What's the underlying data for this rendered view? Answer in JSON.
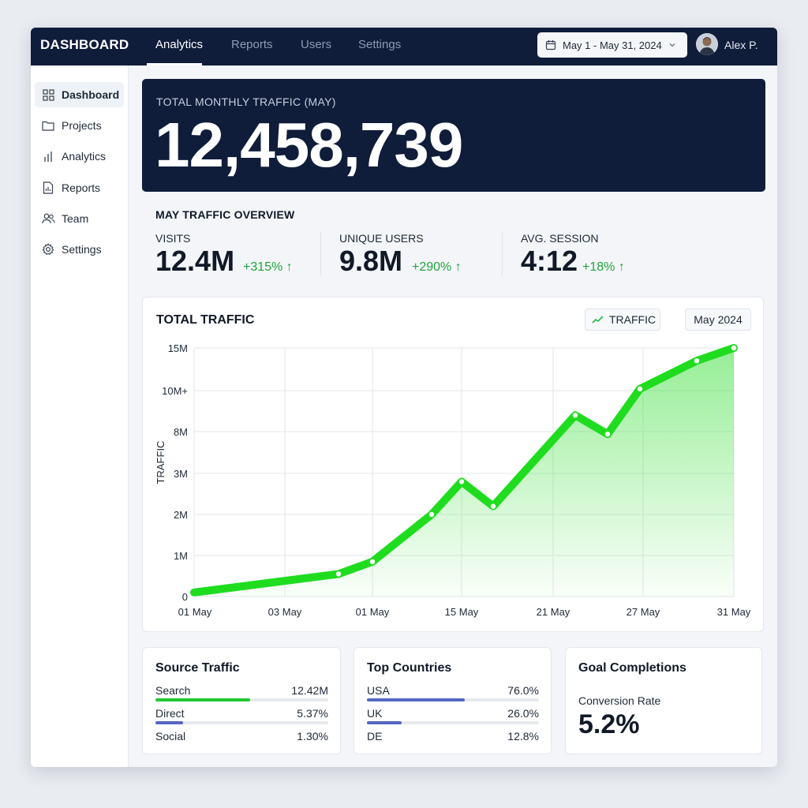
{
  "colors": {
    "navy": "#0f1d3a",
    "accent_green": "#1fdc1f",
    "change_green": "#1fa63a",
    "bar_green": "#22c832",
    "bar_blue": "#5566c0"
  },
  "header": {
    "brand": "DASHBOARD",
    "tabs": [
      {
        "label": "Analytics",
        "active": true
      },
      {
        "label": "Reports",
        "active": false
      },
      {
        "label": "Users",
        "active": false
      },
      {
        "label": "Settings",
        "active": false
      }
    ],
    "date_range": "May 1 - May 31, 2024",
    "user_name": "Alex P."
  },
  "sidebar": {
    "items": [
      {
        "label": "Dashboard",
        "icon": "grid-icon",
        "active": true
      },
      {
        "label": "Projects",
        "icon": "folder-icon",
        "active": false
      },
      {
        "label": "Analytics",
        "icon": "bar-chart-icon",
        "active": false
      },
      {
        "label": "Reports",
        "icon": "report-icon",
        "active": false
      },
      {
        "label": "Team",
        "icon": "team-icon",
        "active": false
      },
      {
        "label": "Settings",
        "icon": "gear-icon",
        "active": false
      }
    ]
  },
  "hero": {
    "label": "TOTAL MONTHLY TRAFFIC (MAY)",
    "value": "12,458,739"
  },
  "overview": {
    "title": "MAY TRAFFIC OVERVIEW",
    "stats": [
      {
        "label": "VISITS",
        "value": "12.4M",
        "change": "+315% ↑"
      },
      {
        "label": "UNIQUE USERS",
        "value": "9.8M",
        "change": "+290% ↑"
      },
      {
        "label": "AVG. SESSION",
        "value": "4:12",
        "change": "+18% ↑"
      }
    ]
  },
  "chart": {
    "title": "TOTAL TRAFFIC",
    "legend": "TRAFFIC",
    "period": "May 2024"
  },
  "chart_data": {
    "type": "line",
    "title": "TOTAL TRAFFIC",
    "xlabel": "",
    "ylabel": "TRAFFIC",
    "y_ticks": [
      "0",
      "1M",
      "2M",
      "3M",
      "8M",
      "10M+",
      "15M"
    ],
    "x_ticks": [
      "01 May",
      "03 May",
      "01 May",
      "15 May",
      "21 May",
      "27 May",
      "31 May"
    ],
    "legend": [
      "TRAFFIC"
    ],
    "grid": true,
    "series": [
      {
        "name": "TRAFFIC",
        "x": [
          "01 May",
          "08 May",
          "11 May",
          "13 May",
          "14 May",
          "16 May",
          "20 May",
          "22 May",
          "25 May",
          "29 May",
          "31 May"
        ],
        "y": [
          0.1,
          0.55,
          0.85,
          2.0,
          2.8,
          2.2,
          8.8,
          7.7,
          10.2,
          13.5,
          15.0
        ]
      }
    ]
  },
  "source_traffic": {
    "title": "Source Traffic",
    "rows": [
      {
        "label": "Search",
        "value": "12.42M",
        "share": 0.55
      },
      {
        "label": "Direct",
        "value": "5.37%",
        "share": 0.16
      },
      {
        "label": "Social",
        "value": "1.30%",
        "share": 0
      }
    ]
  },
  "top_countries": {
    "title": "Top Countries",
    "rows": [
      {
        "label": "USA",
        "value": "76.0%",
        "share": 0.57
      },
      {
        "label": "UK",
        "value": "26.0%",
        "share": 0.2
      },
      {
        "label": "DE",
        "value": "12.8%",
        "share": 0
      }
    ]
  },
  "goals": {
    "title": "Goal Completions",
    "metric_label": "Conversion Rate",
    "metric_value": "5.2%"
  }
}
